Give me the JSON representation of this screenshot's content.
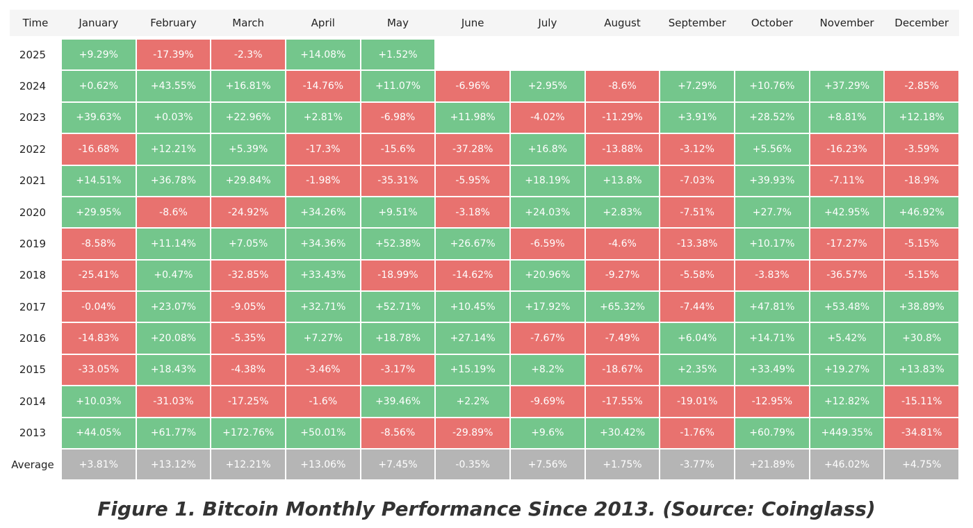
{
  "table": {
    "header": [
      "Time",
      "January",
      "February",
      "March",
      "April",
      "May",
      "June",
      "July",
      "August",
      "September",
      "October",
      "November",
      "December"
    ],
    "colors": {
      "positive": "#74c68c",
      "negative": "#e8726f",
      "average": "#b5b5b5"
    },
    "rows": [
      {
        "label": "2025",
        "cells": [
          "+9.29%",
          "-17.39%",
          "-2.3%",
          "+14.08%",
          "+1.52%",
          null,
          null,
          null,
          null,
          null,
          null,
          null
        ]
      },
      {
        "label": "2024",
        "cells": [
          "+0.62%",
          "+43.55%",
          "+16.81%",
          "-14.76%",
          "+11.07%",
          "-6.96%",
          "+2.95%",
          "-8.6%",
          "+7.29%",
          "+10.76%",
          "+37.29%",
          "-2.85%"
        ]
      },
      {
        "label": "2023",
        "cells": [
          "+39.63%",
          "+0.03%",
          "+22.96%",
          "+2.81%",
          "-6.98%",
          "+11.98%",
          "-4.02%",
          "-11.29%",
          "+3.91%",
          "+28.52%",
          "+8.81%",
          "+12.18%"
        ]
      },
      {
        "label": "2022",
        "cells": [
          "-16.68%",
          "+12.21%",
          "+5.39%",
          "-17.3%",
          "-15.6%",
          "-37.28%",
          "+16.8%",
          "-13.88%",
          "-3.12%",
          "+5.56%",
          "-16.23%",
          "-3.59%"
        ]
      },
      {
        "label": "2021",
        "cells": [
          "+14.51%",
          "+36.78%",
          "+29.84%",
          "-1.98%",
          "-35.31%",
          "-5.95%",
          "+18.19%",
          "+13.8%",
          "-7.03%",
          "+39.93%",
          "-7.11%",
          "-18.9%"
        ]
      },
      {
        "label": "2020",
        "cells": [
          "+29.95%",
          "-8.6%",
          "-24.92%",
          "+34.26%",
          "+9.51%",
          "-3.18%",
          "+24.03%",
          "+2.83%",
          "-7.51%",
          "+27.7%",
          "+42.95%",
          "+46.92%"
        ]
      },
      {
        "label": "2019",
        "cells": [
          "-8.58%",
          "+11.14%",
          "+7.05%",
          "+34.36%",
          "+52.38%",
          "+26.67%",
          "-6.59%",
          "-4.6%",
          "-13.38%",
          "+10.17%",
          "-17.27%",
          "-5.15%"
        ]
      },
      {
        "label": "2018",
        "cells": [
          "-25.41%",
          "+0.47%",
          "-32.85%",
          "+33.43%",
          "-18.99%",
          "-14.62%",
          "+20.96%",
          "-9.27%",
          "-5.58%",
          "-3.83%",
          "-36.57%",
          "-5.15%"
        ]
      },
      {
        "label": "2017",
        "cells": [
          "-0.04%",
          "+23.07%",
          "-9.05%",
          "+32.71%",
          "+52.71%",
          "+10.45%",
          "+17.92%",
          "+65.32%",
          "-7.44%",
          "+47.81%",
          "+53.48%",
          "+38.89%"
        ]
      },
      {
        "label": "2016",
        "cells": [
          "-14.83%",
          "+20.08%",
          "-5.35%",
          "+7.27%",
          "+18.78%",
          "+27.14%",
          "-7.67%",
          "-7.49%",
          "+6.04%",
          "+14.71%",
          "+5.42%",
          "+30.8%"
        ]
      },
      {
        "label": "2015",
        "cells": [
          "-33.05%",
          "+18.43%",
          "-4.38%",
          "-3.46%",
          "-3.17%",
          "+15.19%",
          "+8.2%",
          "-18.67%",
          "+2.35%",
          "+33.49%",
          "+19.27%",
          "+13.83%"
        ]
      },
      {
        "label": "2014",
        "cells": [
          "+10.03%",
          "-31.03%",
          "-17.25%",
          "-1.6%",
          "+39.46%",
          "+2.2%",
          "-9.69%",
          "-17.55%",
          "-19.01%",
          "-12.95%",
          "+12.82%",
          "-15.11%"
        ]
      },
      {
        "label": "2013",
        "cells": [
          "+44.05%",
          "+61.77%",
          "+172.76%",
          "+50.01%",
          "-8.56%",
          "-29.89%",
          "+9.6%",
          "+30.42%",
          "-1.76%",
          "+60.79%",
          "+449.35%",
          "-34.81%"
        ]
      }
    ],
    "average": {
      "label": "Average",
      "cells": [
        "+3.81%",
        "+13.12%",
        "+12.21%",
        "+13.06%",
        "+7.45%",
        "-0.35%",
        "+7.56%",
        "+1.75%",
        "-3.77%",
        "+21.89%",
        "+46.02%",
        "+4.75%"
      ]
    }
  },
  "caption": "Figure 1. Bitcoin Monthly Performance Since 2013. (Source: Coinglass)"
}
